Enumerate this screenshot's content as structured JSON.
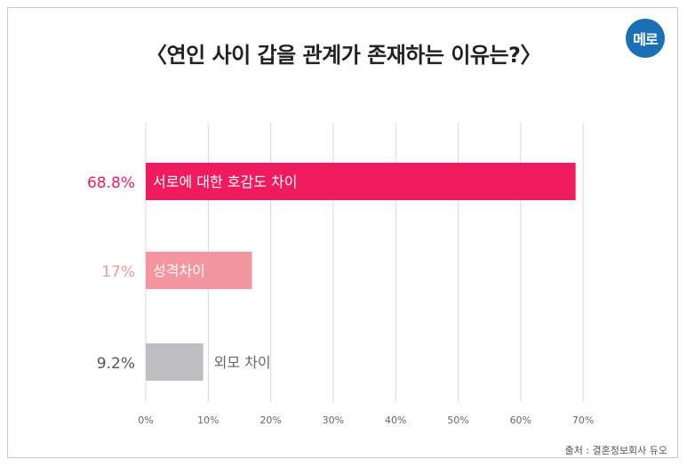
{
  "brand": {
    "logo_text": "메로"
  },
  "source": "출처 : 결혼정보회사 듀오",
  "colors": {
    "bar1": "#ee1c5e",
    "bar2": "#f4969f",
    "bar3": "#bfbfc1",
    "grid": "#d9d9d9",
    "tick": "#666666"
  },
  "chart_data": {
    "type": "bar",
    "orientation": "horizontal",
    "title": "〈연인 사이 갑을 관계가 존재하는 이유는?〉",
    "categories": [
      "서로에 대한 호감도 차이",
      "성격차이",
      "외모 차이"
    ],
    "values": [
      68.8,
      17,
      9.2
    ],
    "value_labels": [
      "68.8%",
      "17%",
      "9.2%"
    ],
    "xlim": [
      0,
      70
    ],
    "ticks": [
      0,
      10,
      20,
      30,
      40,
      50,
      60,
      70
    ],
    "tick_labels": [
      "0%",
      "10%",
      "20%",
      "30%",
      "40%",
      "50%",
      "60%",
      "70%"
    ],
    "grid": true
  }
}
